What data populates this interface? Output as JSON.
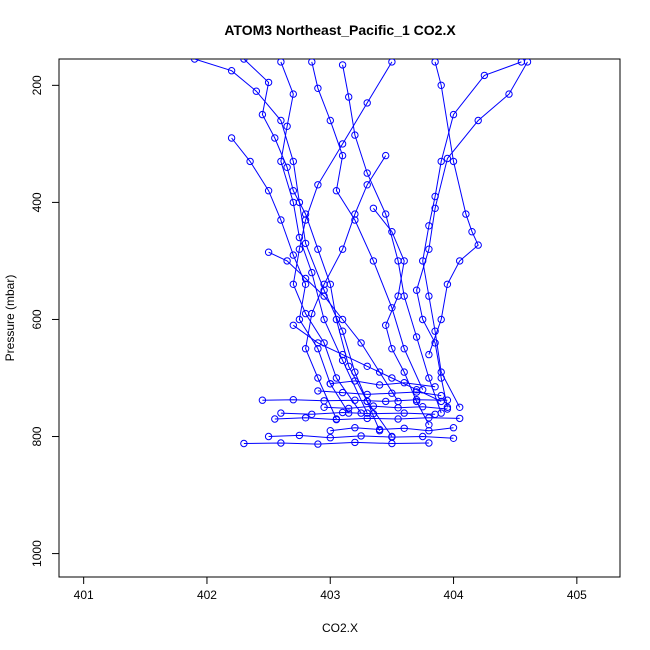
{
  "chart_data": {
    "type": "scatter",
    "title": "ATOM3 Northeast_Pacific_1 CO2.X",
    "xlabel": "CO2.X",
    "ylabel": "Pressure (mbar)",
    "xlim": [
      400.8,
      405.35
    ],
    "ylim": [
      1040,
      155
    ],
    "y_inverted": true,
    "grid": false,
    "legend": "none",
    "x_ticks": [
      401,
      402,
      403,
      404,
      405
    ],
    "y_ticks": [
      200,
      400,
      600,
      800,
      1000
    ],
    "series_color": "#0000ff",
    "marker": "open-circle",
    "series": [
      {
        "x": [
          401.9,
          402.2,
          402.4,
          402.6,
          402.7,
          402.75,
          402.8,
          402.95,
          403.1,
          403.2,
          403.3,
          403.4
        ],
        "y": [
          155,
          175,
          210,
          260,
          330,
          400,
          470,
          550,
          620,
          690,
          740,
          790
        ]
      },
      {
        "x": [
          402.3,
          402.5,
          402.45,
          402.55,
          402.65,
          402.7,
          402.8,
          402.9,
          403.0,
          403.05,
          403.15,
          403.3,
          403.5
        ],
        "y": [
          155,
          195,
          250,
          290,
          340,
          380,
          420,
          480,
          540,
          600,
          680,
          740,
          800
        ]
      },
      {
        "x": [
          402.6,
          402.7,
          402.65,
          402.6,
          402.7,
          402.75,
          402.85,
          402.95,
          403.1,
          403.3
        ],
        "y": [
          160,
          215,
          270,
          330,
          400,
          460,
          520,
          600,
          670,
          760
        ]
      },
      {
        "x": [
          402.85,
          402.9,
          403.0,
          403.1,
          403.05,
          403.2,
          403.35,
          403.5,
          403.6,
          403.75
        ],
        "y": [
          160,
          205,
          260,
          320,
          380,
          430,
          500,
          580,
          650,
          720
        ]
      },
      {
        "x": [
          403.1,
          403.15,
          403.2,
          403.3,
          403.45,
          403.55,
          403.6,
          403.7,
          403.8,
          403.9
        ],
        "y": [
          165,
          220,
          285,
          350,
          420,
          500,
          560,
          630,
          700,
          760
        ]
      },
      {
        "x": [
          403.5,
          403.3,
          403.1,
          402.9,
          402.8,
          402.75,
          402.7,
          402.8,
          402.95,
          403.05,
          403.25
        ],
        "y": [
          160,
          230,
          300,
          370,
          430,
          480,
          540,
          590,
          640,
          700,
          760
        ]
      },
      {
        "x": [
          404.6,
          404.45,
          404.2,
          403.95,
          403.85,
          403.8,
          403.7,
          403.75,
          403.85,
          403.9,
          403.95
        ],
        "y": [
          160,
          215,
          260,
          325,
          410,
          480,
          550,
          600,
          640,
          700,
          750
        ]
      },
      {
        "x": [
          404.55,
          404.25,
          404.0,
          403.9,
          403.85,
          403.8,
          403.75,
          403.8,
          403.85,
          403.9,
          404.05
        ],
        "y": [
          160,
          183,
          250,
          330,
          390,
          440,
          500,
          560,
          620,
          690,
          750
        ]
      },
      {
        "x": [
          403.85,
          403.9,
          404.0,
          404.1,
          404.15,
          404.2,
          404.05,
          403.95,
          403.9,
          403.8
        ],
        "y": [
          160,
          200,
          330,
          420,
          450,
          473,
          500,
          540,
          600,
          660
        ]
      },
      {
        "x": [
          402.2,
          402.35,
          402.5,
          402.6,
          402.7,
          402.8,
          402.75,
          402.9,
          403.0,
          403.15
        ],
        "y": [
          290,
          330,
          380,
          430,
          490,
          540,
          600,
          650,
          710,
          760
        ]
      },
      {
        "x": [
          403.45,
          403.3,
          403.2,
          403.1,
          402.95,
          402.85,
          402.8,
          402.9,
          403.05
        ],
        "y": [
          320,
          370,
          420,
          480,
          540,
          590,
          650,
          700,
          770
        ]
      },
      {
        "x": [
          403.35,
          403.5,
          403.6,
          403.55,
          403.45,
          403.5,
          403.6,
          403.7,
          403.8
        ],
        "y": [
          410,
          450,
          500,
          560,
          610,
          650,
          690,
          740,
          780
        ]
      },
      {
        "x": [
          402.5,
          402.65,
          402.8,
          402.95,
          403.1,
          403.25,
          403.4,
          403.55
        ],
        "y": [
          485,
          500,
          530,
          560,
          600,
          640,
          690,
          740
        ]
      },
      {
        "x": [
          402.7,
          402.9,
          403.1,
          403.3,
          403.5,
          403.7,
          403.9
        ],
        "y": [
          610,
          640,
          660,
          680,
          700,
          720,
          740
        ]
      },
      {
        "x": [
          402.45,
          402.7,
          402.95,
          403.2,
          403.45,
          403.7,
          403.95
        ],
        "y": [
          738,
          737,
          739,
          738,
          740,
          737,
          738
        ]
      },
      {
        "x": [
          402.55,
          402.8,
          403.05,
          403.3,
          403.55,
          403.8,
          404.05
        ],
        "y": [
          770,
          768,
          771,
          769,
          770,
          768,
          769
        ]
      },
      {
        "x": [
          402.6,
          402.85,
          403.1,
          403.35,
          403.6,
          403.85
        ],
        "y": [
          760,
          762,
          759,
          761,
          760,
          762
        ]
      },
      {
        "x": [
          402.5,
          402.75,
          403.0,
          403.25,
          403.5,
          403.75,
          404.0
        ],
        "y": [
          800,
          798,
          802,
          799,
          801,
          800,
          803
        ]
      },
      {
        "x": [
          402.3,
          402.6,
          402.9,
          403.2,
          403.5,
          403.8
        ],
        "y": [
          812,
          811,
          813,
          810,
          812,
          811
        ]
      },
      {
        "x": [
          403.0,
          403.2,
          403.4,
          403.6,
          403.8,
          404.0
        ],
        "y": [
          790,
          785,
          788,
          786,
          790,
          785
        ]
      },
      {
        "x": [
          402.9,
          403.1,
          403.3,
          403.5,
          403.7,
          403.9
        ],
        "y": [
          722,
          725,
          728,
          726,
          724,
          730
        ]
      },
      {
        "x": [
          403.0,
          403.2,
          403.4,
          403.6,
          403.85
        ],
        "y": [
          710,
          705,
          712,
          708,
          715
        ]
      },
      {
        "x": [
          402.95,
          403.15,
          403.35,
          403.55,
          403.75,
          403.95
        ],
        "y": [
          750,
          752,
          748,
          751,
          749,
          753
        ]
      }
    ]
  }
}
